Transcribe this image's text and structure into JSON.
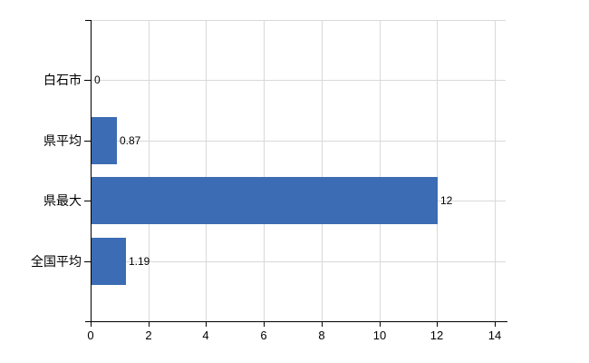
{
  "chart_data": {
    "type": "bar",
    "orientation": "horizontal",
    "title": "",
    "xlabel": "",
    "ylabel": "",
    "categories": [
      "白石市",
      "県平均",
      "県最大",
      "全国平均"
    ],
    "values": [
      0,
      0.87,
      12,
      1.19
    ],
    "value_labels": [
      "0",
      "0.87",
      "12",
      "1.19"
    ],
    "xlim": [
      0,
      14
    ],
    "x_ticks": [
      0,
      2,
      4,
      6,
      8,
      10,
      12,
      14
    ],
    "x_tick_labels": [
      "0",
      "2",
      "4",
      "6",
      "8",
      "10",
      "12",
      "14"
    ],
    "grid": true,
    "legend": false,
    "colors": {
      "bar": "#3c6cb4",
      "grid": "#d9d9d9",
      "axis": "#000000",
      "text": "#000000",
      "background": "#ffffff"
    }
  }
}
